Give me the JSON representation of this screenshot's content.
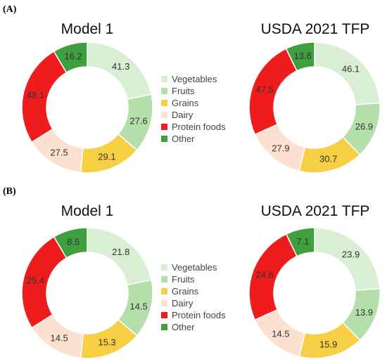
{
  "panels": [
    {
      "label": "(A)",
      "charts": [
        {
          "title": "Model 1"
        },
        {
          "title": "USDA 2021 TFP"
        }
      ]
    },
    {
      "label": "(B)",
      "charts": [
        {
          "title": "Model 1"
        },
        {
          "title": "USDA 2021 TFP"
        }
      ]
    }
  ],
  "legend": [
    "Vegetables",
    "Fruits",
    "Grains",
    "Dairy",
    "Protein foods",
    "Other"
  ],
  "colors": {
    "Vegetables": "#d9efd4",
    "Fruits": "#b4dfab",
    "Grains": "#f7cf45",
    "Dairy": "#fce1d0",
    "Protein foods": "#ee1c1c",
    "Other": "#3f9f3f"
  },
  "chart_data": [
    {
      "type": "pie",
      "panel": "(A)",
      "title": "Model 1",
      "categories": [
        "Vegetables",
        "Fruits",
        "Grains",
        "Dairy",
        "Protein foods",
        "Other"
      ],
      "values": [
        41.3,
        27.6,
        29.1,
        27.5,
        48.1,
        16.2
      ]
    },
    {
      "type": "pie",
      "panel": "(A)",
      "title": "USDA 2021 TFP",
      "categories": [
        "Vegetables",
        "Fruits",
        "Grains",
        "Dairy",
        "Protein foods",
        "Other"
      ],
      "values": [
        46.1,
        26.9,
        30.7,
        27.9,
        47.5,
        13.8
      ]
    },
    {
      "type": "pie",
      "panel": "(B)",
      "title": "Model 1",
      "categories": [
        "Vegetables",
        "Fruits",
        "Grains",
        "Dairy",
        "Protein foods",
        "Other"
      ],
      "values": [
        21.8,
        14.5,
        15.3,
        14.5,
        25.4,
        8.5
      ]
    },
    {
      "type": "pie",
      "panel": "(B)",
      "title": "USDA 2021 TFP",
      "categories": [
        "Vegetables",
        "Fruits",
        "Grains",
        "Dairy",
        "Protein foods",
        "Other"
      ],
      "values": [
        23.9,
        13.9,
        15.9,
        14.5,
        24.6,
        7.1
      ]
    }
  ]
}
